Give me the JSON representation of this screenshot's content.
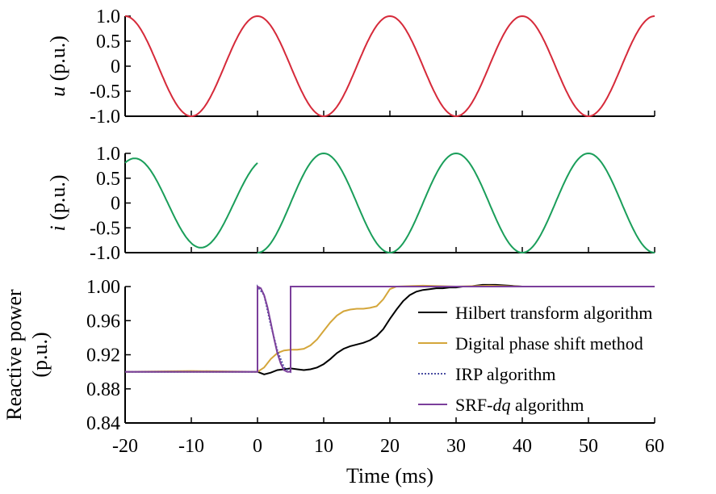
{
  "x_axis": {
    "label": "Time (ms)",
    "range": [
      -20,
      60
    ],
    "ticks": [
      -20,
      -10,
      0,
      10,
      20,
      30,
      40,
      50,
      60
    ],
    "tick_labels": [
      "-20",
      "-10",
      "0",
      "10",
      "20",
      "30",
      "40",
      "50",
      "60"
    ]
  },
  "chart_data": [
    {
      "type": "line",
      "ylabel_var": "u",
      "ylabel_unit": " (p.u.)",
      "xlim": [
        -20,
        60
      ],
      "ylim": [
        -1.0,
        1.0
      ],
      "yticks": [
        1.0,
        0.5,
        0,
        -0.5,
        -1.0
      ],
      "ytick_labels": [
        "1.0",
        "0.5",
        "0",
        "-0.5",
        "-1.0"
      ],
      "series": [
        {
          "color": "#d62a3a",
          "form": "sine",
          "amplitude": 1.0,
          "frequency_hz": 50,
          "phase_deg": 90,
          "x_start": -20,
          "x_end": 60
        }
      ]
    },
    {
      "type": "line",
      "ylabel_var": "i",
      "ylabel_unit": " (p.u.)",
      "xlim": [
        -20,
        60
      ],
      "ylim": [
        -1.0,
        1.0
      ],
      "yticks": [
        1.0,
        0.5,
        0,
        -0.5,
        -1.0
      ],
      "ytick_labels": [
        "1.0",
        "0.5",
        "0",
        "-0.5",
        "-1.0"
      ],
      "series": [
        {
          "color": "#1a9e5a",
          "form": "sine",
          "amplitude": 0.9,
          "frequency_hz": 50,
          "phase_deg": 64,
          "x_start": -20,
          "x_end": 0
        },
        {
          "color": "#1a9e5a",
          "form": "sine",
          "amplitude": 1.0,
          "frequency_hz": 50,
          "phase_deg": -90,
          "x_start": 0,
          "x_end": 60
        }
      ]
    },
    {
      "type": "line",
      "ylabel_lines": [
        "Reactive power",
        "(p.u.)"
      ],
      "xlim": [
        -20,
        60
      ],
      "ylim": [
        0.84,
        1.0
      ],
      "yticks": [
        1.0,
        0.96,
        0.92,
        0.88,
        0.84
      ],
      "ytick_labels": [
        "1.00",
        "0.96",
        "0.92",
        "0.88",
        "0.84"
      ],
      "legend_position": "center-right",
      "series": [
        {
          "name": "Hilbert transform algorithm",
          "color": "#000000",
          "dash": "",
          "x": [
            -20,
            0,
            1,
            2,
            3,
            4,
            5,
            6,
            7,
            8,
            9,
            10,
            11,
            12,
            13,
            14,
            15,
            16,
            17,
            18,
            19,
            20,
            21,
            22,
            23,
            24,
            25,
            26,
            27,
            28,
            29,
            30,
            31,
            32,
            33,
            34,
            35,
            36,
            38,
            40,
            45,
            50,
            55,
            60
          ],
          "y": [
            0.9,
            0.9,
            0.897,
            0.899,
            0.902,
            0.903,
            0.904,
            0.903,
            0.902,
            0.903,
            0.905,
            0.909,
            0.915,
            0.922,
            0.927,
            0.93,
            0.932,
            0.934,
            0.937,
            0.942,
            0.95,
            0.962,
            0.973,
            0.983,
            0.99,
            0.994,
            0.996,
            0.997,
            0.998,
            0.998,
            0.999,
            0.999,
            1.0,
            1.0,
            1.001,
            1.002,
            1.002,
            1.002,
            1.001,
            1.0,
            1.0,
            1.0,
            1.0,
            1.0
          ]
        },
        {
          "name": "Digital phase shift method",
          "color": "#d4a63a",
          "dash": "",
          "x": [
            -20,
            -10,
            0,
            1,
            2,
            3,
            4,
            5,
            6,
            7,
            8,
            9,
            10,
            11,
            12,
            13,
            14,
            15,
            16,
            17,
            18,
            19,
            20,
            21,
            25,
            30,
            35,
            40,
            50,
            60
          ],
          "y": [
            0.9,
            0.901,
            0.9,
            0.905,
            0.915,
            0.922,
            0.925,
            0.926,
            0.926,
            0.927,
            0.931,
            0.938,
            0.948,
            0.958,
            0.966,
            0.971,
            0.973,
            0.974,
            0.974,
            0.975,
            0.977,
            0.985,
            0.997,
            1.0,
            1.001,
            1.0,
            1.001,
            1.0,
            1.0,
            1.0
          ]
        },
        {
          "name": "IRP algorithm",
          "color": "#4b4fa3",
          "dash": "2,2",
          "x": [
            -20,
            0,
            0,
            1,
            2,
            3,
            4,
            5,
            5,
            60
          ],
          "y": [
            0.9,
            0.9,
            1.0,
            0.99,
            0.955,
            0.925,
            0.905,
            0.9,
            1.0,
            1.0
          ]
        },
        {
          "name": "SRF-dq algorithm",
          "name_parts": [
            "SRF-",
            "dq",
            " algorithm"
          ],
          "color": "#7b3f9b",
          "dash": "",
          "x": [
            -20,
            0,
            0,
            0.5,
            1,
            1.5,
            2,
            2.5,
            3,
            3.5,
            4,
            4.5,
            5,
            5,
            60
          ],
          "y": [
            0.9,
            0.9,
            1.0,
            0.998,
            0.99,
            0.976,
            0.958,
            0.939,
            0.922,
            0.91,
            0.902,
            0.9,
            0.9,
            1.0,
            1.0
          ]
        }
      ]
    }
  ]
}
